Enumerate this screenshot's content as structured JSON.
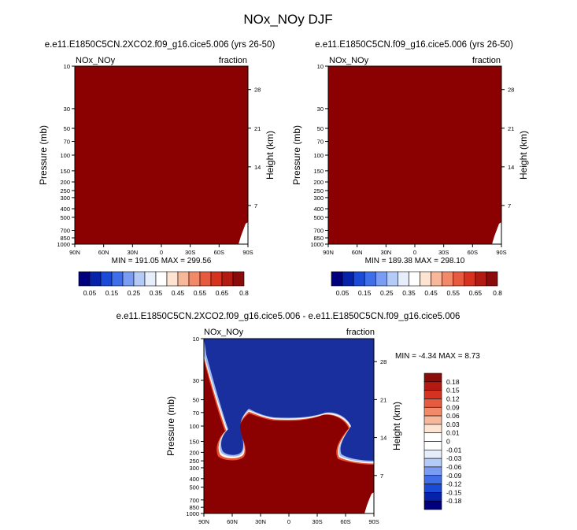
{
  "page_title": "NOx_NOy DJF",
  "colors": {
    "saturated_red": "#8b0000",
    "deep_blue": "#1a2f9e",
    "frame": "#000000"
  },
  "chart_data": [
    {
      "type": "heatmap",
      "title": "e.e11.E1850C5CN.2XCO2.f09_g16.cice5.006 (yrs 26-50)",
      "left_label": "NOx_NOy",
      "right_label": "fraction",
      "xlabel": "",
      "ylabel": "Pressure (mb)",
      "y2label": "Height (km)",
      "x_ticks": [
        "90N",
        "60N",
        "30N",
        "0",
        "30S",
        "60S",
        "90S"
      ],
      "y_ticks": [
        "10",
        "30",
        "50",
        "70",
        "100",
        "150",
        "200",
        "250",
        "300",
        "400",
        "500",
        "700",
        "850",
        "1000"
      ],
      "y2_ticks": [
        "28",
        "21",
        "14",
        "7"
      ],
      "ylim": [
        1000,
        10
      ],
      "y_scale": "log",
      "min_max_text": "MIN = 191.05   MAX = 299.56",
      "field": "all values above colorbar maximum (saturated dark red), missing data near 90S surface",
      "colorbar": {
        "labels": [
          "0.05",
          "0.15",
          "0.25",
          "0.35",
          "0.45",
          "0.55",
          "0.65",
          "0.8"
        ],
        "colors": [
          "#00007f",
          "#0522a8",
          "#1a4bd6",
          "#3f6ee8",
          "#7a9cf3",
          "#b4cbf8",
          "#e6eefc",
          "#ffffff",
          "#fde3d2",
          "#f7b79a",
          "#f28a6a",
          "#e65a3f",
          "#d63220",
          "#b31a12",
          "#8b0a0a"
        ]
      }
    },
    {
      "type": "heatmap",
      "title": "e.e11.E1850C5CN.f09_g16.cice5.006 (yrs 26-50)",
      "left_label": "NOx_NOy",
      "right_label": "fraction",
      "xlabel": "",
      "ylabel": "Pressure (mb)",
      "y2label": "Height (km)",
      "x_ticks": [
        "90N",
        "60N",
        "30N",
        "0",
        "30S",
        "60S",
        "90S"
      ],
      "y_ticks": [
        "10",
        "30",
        "50",
        "70",
        "100",
        "150",
        "200",
        "250",
        "300",
        "400",
        "500",
        "700",
        "850",
        "1000"
      ],
      "y2_ticks": [
        "28",
        "21",
        "14",
        "7"
      ],
      "ylim": [
        1000,
        10
      ],
      "y_scale": "log",
      "min_max_text": "MIN = 189.38   MAX = 298.10",
      "field": "all values above colorbar maximum (saturated dark red), missing data near 90S surface",
      "colorbar": {
        "labels": [
          "0.05",
          "0.15",
          "0.25",
          "0.35",
          "0.45",
          "0.55",
          "0.65",
          "0.8"
        ],
        "colors": [
          "#00007f",
          "#0522a8",
          "#1a4bd6",
          "#3f6ee8",
          "#7a9cf3",
          "#b4cbf8",
          "#e6eefc",
          "#ffffff",
          "#fde3d2",
          "#f7b79a",
          "#f28a6a",
          "#e65a3f",
          "#d63220",
          "#b31a12",
          "#8b0a0a"
        ]
      }
    },
    {
      "type": "heatmap",
      "title": "e.e11.E1850C5CN.2XCO2.f09_g16.cice5.006 - e.e11.E1850C5CN.f09_g16.cice5.006",
      "left_label": "NOx_NOy",
      "right_label": "fraction",
      "xlabel": "",
      "ylabel": "Pressure (mb)",
      "y2label": "Height (km)",
      "x_ticks": [
        "90N",
        "60N",
        "30N",
        "0",
        "30S",
        "60S",
        "90S"
      ],
      "y_ticks": [
        "10",
        "30",
        "50",
        "70",
        "100",
        "150",
        "200",
        "250",
        "300",
        "400",
        "500",
        "700",
        "850",
        "1000"
      ],
      "y2_ticks": [
        "28",
        "21",
        "14",
        "7"
      ],
      "ylim": [
        1000,
        10
      ],
      "y_scale": "log",
      "min_max_text": "MIN = -4.34   MAX =  8.73",
      "field": "difference: strongly positive (dark red) in lower atmosphere, strongly negative (dark blue) in upper atmosphere, boundary near 70-100 mb with a negative lobe down to ~200 mb near 60N",
      "colorbar": {
        "labels": [
          "0.18",
          "0.15",
          "0.12",
          "0.09",
          "0.06",
          "0.03",
          "0.01",
          "0",
          "-0.01",
          "-0.03",
          "-0.06",
          "-0.09",
          "-0.12",
          "-0.15",
          "-0.18"
        ],
        "colors": [
          "#8b0a0a",
          "#b31a12",
          "#d63220",
          "#e65a3f",
          "#f28a6a",
          "#f7b79a",
          "#fde3d2",
          "#ffffff",
          "#ffffff",
          "#e6eefc",
          "#b4cbf8",
          "#7a9cf3",
          "#3f6ee8",
          "#1a4bd6",
          "#0522a8",
          "#00007f"
        ]
      }
    }
  ]
}
